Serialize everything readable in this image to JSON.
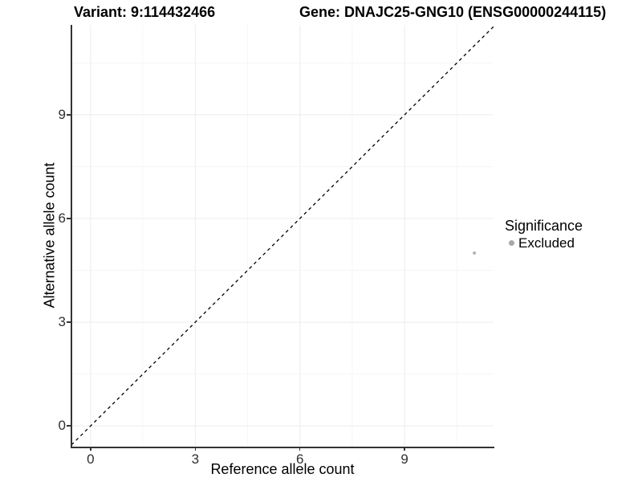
{
  "figure": {
    "background": "#ffffff",
    "variant_title": "Variant: 9:114432466",
    "gene_title": "Gene: DNAJC25-GNG10 (ENSG00000244115)"
  },
  "chart_data": {
    "type": "scatter",
    "title": "",
    "xlabel": "Reference allele count",
    "ylabel": "Alternative allele count",
    "xlim": [
      -0.55,
      11.55
    ],
    "ylim": [
      -0.6,
      11.6
    ],
    "x_ticks": [
      0,
      3,
      6,
      9
    ],
    "y_ticks": [
      0,
      3,
      6,
      9
    ],
    "x_minor_ticks": [
      1.5,
      4.5,
      7.5,
      10.5
    ],
    "y_minor_ticks": [
      1.5,
      4.5,
      7.5,
      10.5
    ],
    "grid": {
      "show": true,
      "major_color": "#ececec",
      "minor_color": "#f6f6f6"
    },
    "identity_line": {
      "style": "dashed",
      "color": "#000000",
      "from": -0.55,
      "to": 11.55
    },
    "series": [
      {
        "name": "Excluded",
        "color": "#b4b4b4",
        "point_radius": 2,
        "points": [
          {
            "x": 11,
            "y": 5
          }
        ]
      }
    ],
    "legend": {
      "title": "Significance",
      "position": "right",
      "items": [
        {
          "label": "Excluded",
          "color": "#a8a8a8"
        }
      ]
    }
  }
}
